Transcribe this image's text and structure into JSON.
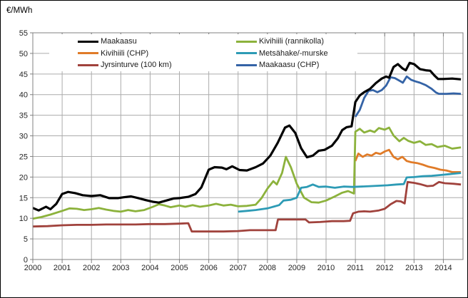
{
  "title": "€/MWh",
  "colors": {
    "grid": "#ABABAB",
    "axis": "#808080",
    "text": "#262626",
    "background": "#FFFFFF",
    "frame_border": "#000000"
  },
  "chart_data": {
    "type": "line",
    "title": "€/MWh",
    "xlabel": "",
    "ylabel": "€/MWh",
    "ylim": [
      0,
      55
    ],
    "xlim": [
      2000,
      2014.67
    ],
    "yticks": [
      0,
      5,
      10,
      15,
      20,
      25,
      30,
      35,
      40,
      45,
      50,
      55
    ],
    "xticks": [
      2000,
      2001,
      2002,
      2003,
      2004,
      2005,
      2006,
      2007,
      2008,
      2009,
      2010,
      2011,
      2012,
      2013,
      2014
    ],
    "grid": true,
    "legend_position": "top-inside-two-columns",
    "legend_columns": [
      [
        0,
        1,
        2
      ],
      [
        3,
        4,
        5
      ]
    ],
    "series": [
      {
        "name": "Maakaasu",
        "color": "#000000",
        "points": [
          [
            2000.0,
            12.5
          ],
          [
            2000.2,
            11.9
          ],
          [
            2000.45,
            12.8
          ],
          [
            2000.6,
            12.2
          ],
          [
            2000.8,
            13.5
          ],
          [
            2001.0,
            15.9
          ],
          [
            2001.2,
            16.4
          ],
          [
            2001.45,
            16.1
          ],
          [
            2001.7,
            15.6
          ],
          [
            2002.0,
            15.4
          ],
          [
            2002.3,
            15.6
          ],
          [
            2002.6,
            14.9
          ],
          [
            2002.9,
            14.9
          ],
          [
            2003.1,
            15.1
          ],
          [
            2003.35,
            15.3
          ],
          [
            2003.6,
            14.9
          ],
          [
            2003.85,
            14.4
          ],
          [
            2004.1,
            14.0
          ],
          [
            2004.3,
            13.8
          ],
          [
            2004.55,
            14.3
          ],
          [
            2004.8,
            14.8
          ],
          [
            2005.0,
            14.9
          ],
          [
            2005.3,
            15.2
          ],
          [
            2005.55,
            15.9
          ],
          [
            2005.75,
            17.5
          ],
          [
            2006.0,
            21.8
          ],
          [
            2006.2,
            22.4
          ],
          [
            2006.45,
            22.3
          ],
          [
            2006.6,
            21.9
          ],
          [
            2006.8,
            22.6
          ],
          [
            2007.05,
            21.7
          ],
          [
            2007.3,
            21.6
          ],
          [
            2007.6,
            22.4
          ],
          [
            2007.85,
            23.3
          ],
          [
            2008.1,
            25.2
          ],
          [
            2008.35,
            28.3
          ],
          [
            2008.6,
            32.0
          ],
          [
            2008.75,
            32.5
          ],
          [
            2008.95,
            30.7
          ],
          [
            2009.15,
            27.0
          ],
          [
            2009.35,
            24.8
          ],
          [
            2009.55,
            25.2
          ],
          [
            2009.75,
            26.4
          ],
          [
            2009.95,
            26.6
          ],
          [
            2010.2,
            27.6
          ],
          [
            2010.4,
            29.4
          ],
          [
            2010.55,
            31.4
          ],
          [
            2010.7,
            32.1
          ],
          [
            2010.87,
            32.3
          ],
          [
            2011.0,
            38.2
          ],
          [
            2011.15,
            39.8
          ],
          [
            2011.3,
            40.6
          ],
          [
            2011.5,
            41.4
          ],
          [
            2011.7,
            42.8
          ],
          [
            2011.9,
            43.9
          ],
          [
            2012.05,
            44.4
          ],
          [
            2012.15,
            44.1
          ],
          [
            2012.3,
            46.7
          ],
          [
            2012.45,
            47.4
          ],
          [
            2012.6,
            46.4
          ],
          [
            2012.72,
            45.9
          ],
          [
            2012.85,
            47.7
          ],
          [
            2013.0,
            47.4
          ],
          [
            2013.2,
            46.2
          ],
          [
            2013.4,
            45.9
          ],
          [
            2013.55,
            45.8
          ],
          [
            2013.7,
            44.6
          ],
          [
            2013.82,
            43.8
          ],
          [
            2014.0,
            43.8
          ],
          [
            2014.3,
            43.9
          ],
          [
            2014.6,
            43.7
          ]
        ]
      },
      {
        "name": "Kivihiili (CHP)",
        "color": "#E07B28",
        "points": [
          [
            2011.0,
            23.9
          ],
          [
            2011.1,
            25.7
          ],
          [
            2011.25,
            24.9
          ],
          [
            2011.4,
            25.5
          ],
          [
            2011.55,
            25.2
          ],
          [
            2011.7,
            25.9
          ],
          [
            2011.85,
            25.6
          ],
          [
            2012.0,
            26.2
          ],
          [
            2012.15,
            26.6
          ],
          [
            2012.3,
            24.9
          ],
          [
            2012.45,
            24.3
          ],
          [
            2012.6,
            24.9
          ],
          [
            2012.75,
            23.9
          ],
          [
            2012.9,
            23.6
          ],
          [
            2013.1,
            23.4
          ],
          [
            2013.3,
            23.0
          ],
          [
            2013.5,
            22.5
          ],
          [
            2013.7,
            22.2
          ],
          [
            2013.9,
            21.8
          ],
          [
            2014.1,
            21.6
          ],
          [
            2014.3,
            21.2
          ],
          [
            2014.6,
            21.2
          ]
        ]
      },
      {
        "name": "Jyrsinturve (100 km)",
        "color": "#A0423C",
        "points": [
          [
            2000.0,
            8.0
          ],
          [
            2000.5,
            8.1
          ],
          [
            2001.0,
            8.3
          ],
          [
            2001.5,
            8.4
          ],
          [
            2002.0,
            8.4
          ],
          [
            2002.5,
            8.5
          ],
          [
            2003.0,
            8.5
          ],
          [
            2003.5,
            8.5
          ],
          [
            2004.0,
            8.6
          ],
          [
            2004.5,
            8.6
          ],
          [
            2005.0,
            8.7
          ],
          [
            2005.3,
            8.8
          ],
          [
            2005.42,
            6.8
          ],
          [
            2006.0,
            6.8
          ],
          [
            2006.5,
            6.8
          ],
          [
            2007.0,
            6.9
          ],
          [
            2007.4,
            7.1
          ],
          [
            2008.0,
            7.1
          ],
          [
            2008.28,
            7.1
          ],
          [
            2008.36,
            9.7
          ],
          [
            2008.7,
            9.7
          ],
          [
            2009.0,
            9.7
          ],
          [
            2009.3,
            9.7
          ],
          [
            2009.42,
            9.0
          ],
          [
            2009.8,
            9.1
          ],
          [
            2010.2,
            9.3
          ],
          [
            2010.6,
            9.3
          ],
          [
            2010.82,
            9.4
          ],
          [
            2010.92,
            11.2
          ],
          [
            2011.1,
            11.6
          ],
          [
            2011.3,
            11.7
          ],
          [
            2011.5,
            11.6
          ],
          [
            2011.8,
            11.9
          ],
          [
            2012.0,
            12.3
          ],
          [
            2012.2,
            13.4
          ],
          [
            2012.4,
            14.2
          ],
          [
            2012.55,
            14.1
          ],
          [
            2012.68,
            13.6
          ],
          [
            2012.78,
            18.8
          ],
          [
            2013.0,
            18.6
          ],
          [
            2013.2,
            18.3
          ],
          [
            2013.45,
            17.8
          ],
          [
            2013.65,
            17.9
          ],
          [
            2013.85,
            18.8
          ],
          [
            2014.05,
            18.5
          ],
          [
            2014.3,
            18.4
          ],
          [
            2014.6,
            18.2
          ]
        ]
      },
      {
        "name": "Kivihiili (rannikolla)",
        "color": "#8CB23C",
        "points": [
          [
            2000.0,
            9.9
          ],
          [
            2000.3,
            10.3
          ],
          [
            2000.6,
            10.9
          ],
          [
            2001.0,
            11.8
          ],
          [
            2001.25,
            12.4
          ],
          [
            2001.5,
            12.3
          ],
          [
            2001.75,
            12.0
          ],
          [
            2002.0,
            12.2
          ],
          [
            2002.25,
            12.5
          ],
          [
            2002.5,
            12.1
          ],
          [
            2002.75,
            11.8
          ],
          [
            2003.0,
            11.6
          ],
          [
            2003.25,
            12.0
          ],
          [
            2003.5,
            11.7
          ],
          [
            2003.8,
            12.0
          ],
          [
            2004.1,
            12.8
          ],
          [
            2004.3,
            13.4
          ],
          [
            2004.5,
            13.1
          ],
          [
            2004.7,
            12.7
          ],
          [
            2005.0,
            13.1
          ],
          [
            2005.2,
            12.8
          ],
          [
            2005.45,
            13.2
          ],
          [
            2005.7,
            12.8
          ],
          [
            2006.0,
            13.1
          ],
          [
            2006.25,
            13.5
          ],
          [
            2006.5,
            13.1
          ],
          [
            2006.75,
            13.3
          ],
          [
            2007.0,
            12.9
          ],
          [
            2007.3,
            13.0
          ],
          [
            2007.6,
            13.3
          ],
          [
            2007.8,
            14.9
          ],
          [
            2008.0,
            17.2
          ],
          [
            2008.2,
            19.0
          ],
          [
            2008.32,
            18.2
          ],
          [
            2008.5,
            21.0
          ],
          [
            2008.63,
            24.9
          ],
          [
            2008.8,
            22.4
          ],
          [
            2009.0,
            18.4
          ],
          [
            2009.25,
            15.0
          ],
          [
            2009.5,
            13.9
          ],
          [
            2009.75,
            13.8
          ],
          [
            2010.0,
            14.3
          ],
          [
            2010.3,
            15.3
          ],
          [
            2010.55,
            16.2
          ],
          [
            2010.75,
            16.6
          ],
          [
            2010.95,
            16.0
          ],
          [
            2011.0,
            31.0
          ],
          [
            2011.15,
            31.7
          ],
          [
            2011.3,
            30.8
          ],
          [
            2011.5,
            31.3
          ],
          [
            2011.65,
            30.9
          ],
          [
            2011.8,
            31.9
          ],
          [
            2012.0,
            31.5
          ],
          [
            2012.15,
            32.0
          ],
          [
            2012.3,
            30.1
          ],
          [
            2012.5,
            28.7
          ],
          [
            2012.65,
            29.5
          ],
          [
            2012.8,
            28.8
          ],
          [
            2013.0,
            28.3
          ],
          [
            2013.2,
            28.7
          ],
          [
            2013.4,
            27.8
          ],
          [
            2013.6,
            28.0
          ],
          [
            2013.8,
            27.3
          ],
          [
            2014.05,
            27.6
          ],
          [
            2014.3,
            26.9
          ],
          [
            2014.6,
            27.2
          ]
        ]
      },
      {
        "name": "Metsähake/-murske",
        "color": "#2D9BB5",
        "points": [
          [
            2007.0,
            11.6
          ],
          [
            2007.3,
            11.8
          ],
          [
            2007.6,
            12.0
          ],
          [
            2008.0,
            12.4
          ],
          [
            2008.2,
            12.8
          ],
          [
            2008.4,
            13.2
          ],
          [
            2008.55,
            14.3
          ],
          [
            2008.8,
            14.5
          ],
          [
            2009.0,
            15.0
          ],
          [
            2009.15,
            17.4
          ],
          [
            2009.35,
            17.6
          ],
          [
            2009.55,
            18.2
          ],
          [
            2009.75,
            17.6
          ],
          [
            2010.0,
            17.7
          ],
          [
            2010.3,
            17.4
          ],
          [
            2010.6,
            17.7
          ],
          [
            2010.9,
            17.6
          ],
          [
            2011.2,
            17.7
          ],
          [
            2011.5,
            17.8
          ],
          [
            2011.8,
            17.9
          ],
          [
            2012.1,
            18.0
          ],
          [
            2012.4,
            18.2
          ],
          [
            2012.65,
            18.3
          ],
          [
            2012.75,
            19.9
          ],
          [
            2013.0,
            20.0
          ],
          [
            2013.3,
            20.2
          ],
          [
            2013.6,
            20.3
          ],
          [
            2013.9,
            20.5
          ],
          [
            2014.2,
            20.7
          ],
          [
            2014.6,
            21.0
          ]
        ]
      },
      {
        "name": "Maakaasu (CHP)",
        "color": "#3463A6",
        "points": [
          [
            2011.0,
            34.6
          ],
          [
            2011.15,
            36.3
          ],
          [
            2011.3,
            39.2
          ],
          [
            2011.45,
            40.9
          ],
          [
            2011.6,
            41.1
          ],
          [
            2011.75,
            40.6
          ],
          [
            2011.9,
            41.1
          ],
          [
            2012.05,
            42.2
          ],
          [
            2012.2,
            44.2
          ],
          [
            2012.35,
            44.0
          ],
          [
            2012.5,
            43.4
          ],
          [
            2012.62,
            42.9
          ],
          [
            2012.75,
            44.4
          ],
          [
            2012.9,
            43.6
          ],
          [
            2013.05,
            43.2
          ],
          [
            2013.2,
            42.9
          ],
          [
            2013.4,
            42.3
          ],
          [
            2013.6,
            41.4
          ],
          [
            2013.75,
            40.5
          ],
          [
            2013.85,
            40.2
          ],
          [
            2014.1,
            40.2
          ],
          [
            2014.35,
            40.3
          ],
          [
            2014.6,
            40.2
          ]
        ]
      }
    ]
  }
}
